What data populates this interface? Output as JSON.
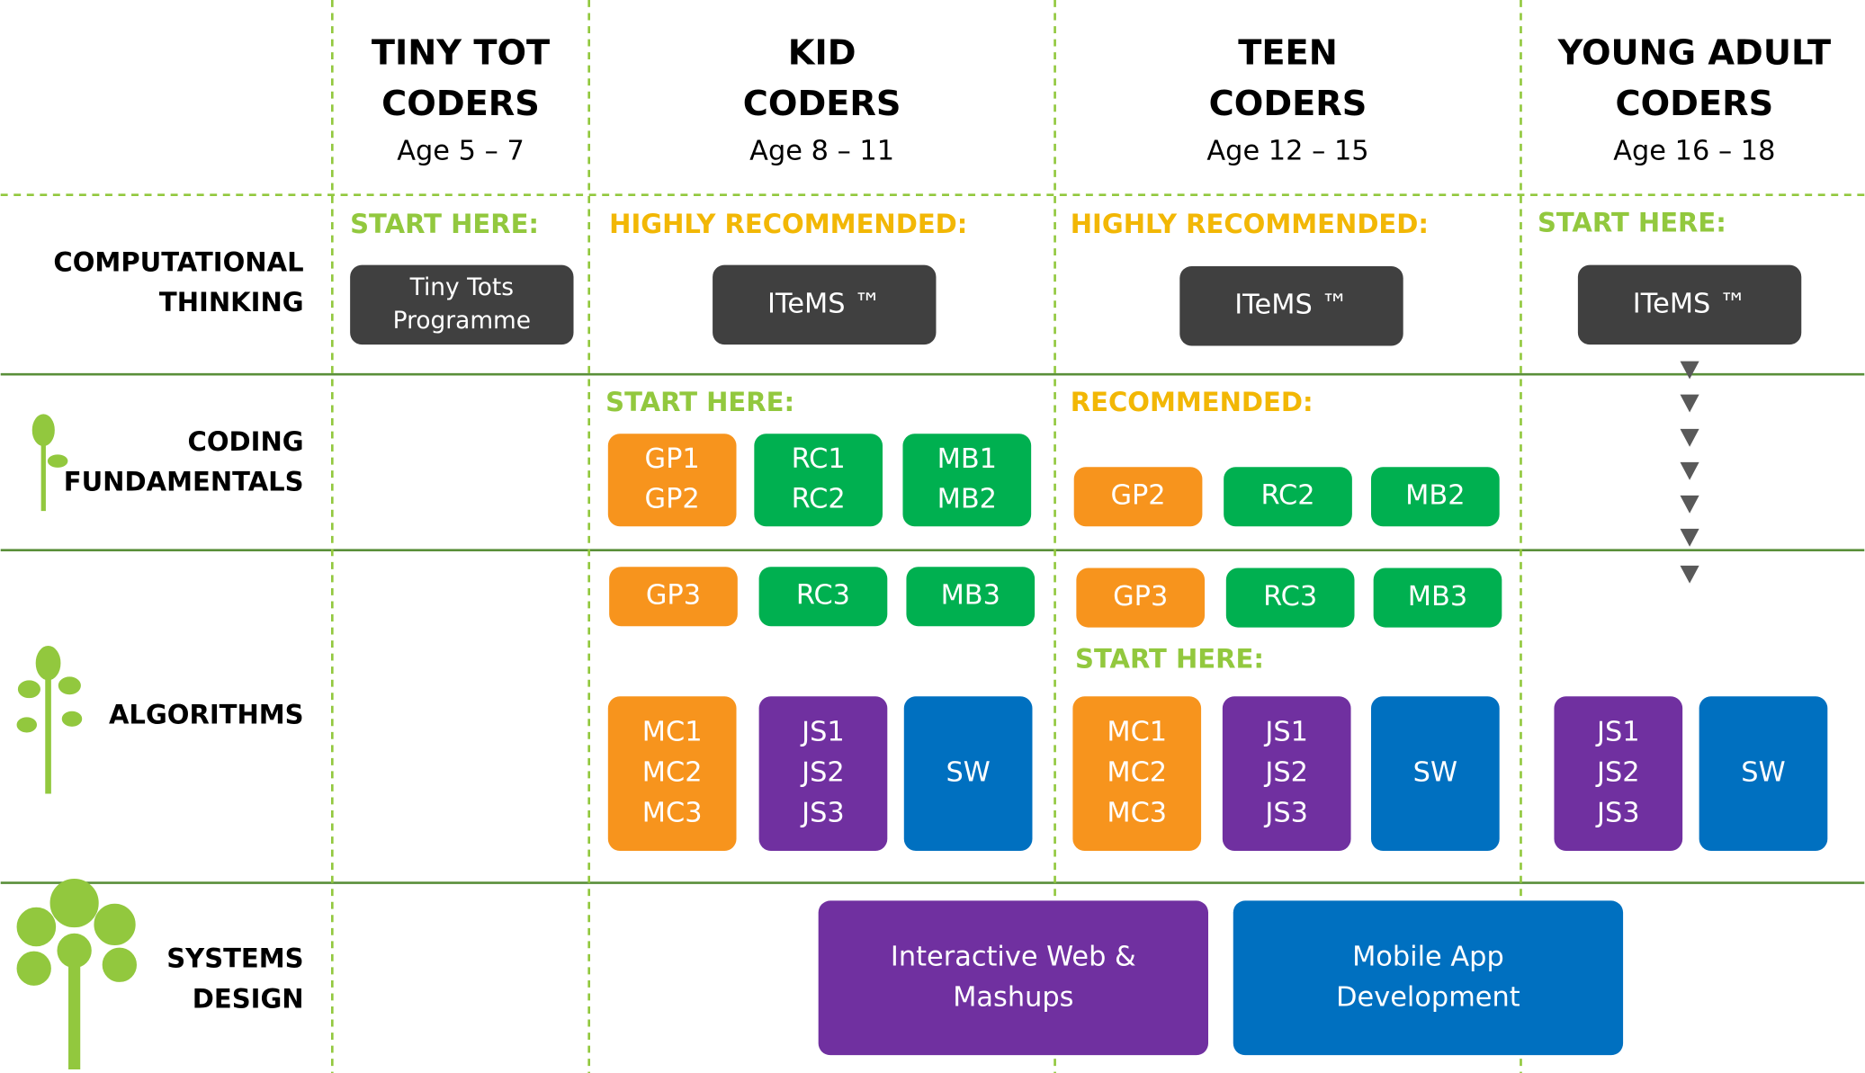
{
  "columns": [
    {
      "title": [
        "TINY TOT",
        "CODERS"
      ],
      "age": "Age 5 – 7"
    },
    {
      "title": [
        "KID",
        "CODERS"
      ],
      "age": "Age 8 – 11"
    },
    {
      "title": [
        "TEEN",
        "CODERS"
      ],
      "age": "Age 12 – 15"
    },
    {
      "title": [
        "YOUNG ADULT",
        "CODERS"
      ],
      "age": "Age 16 – 18"
    }
  ],
  "rows": [
    {
      "label": [
        "COMPUTATIONAL",
        "THINKING"
      ]
    },
    {
      "label": [
        "CODING",
        "FUNDAMENTALS"
      ]
    },
    {
      "label": [
        "ALGORITHMS"
      ]
    },
    {
      "label": [
        "SYSTEMS",
        "DESIGN"
      ]
    }
  ],
  "notes": [
    {
      "text": "START HERE:",
      "color": "#92c83e"
    },
    {
      "text": "HIGHLY RECOMMENDED:",
      "color": "#f2b705"
    },
    {
      "text": "HIGHLY RECOMMENDED:",
      "color": "#f2b705"
    },
    {
      "text": "START HERE:",
      "color": "#92c83e"
    },
    {
      "text": "START HERE:",
      "color": "#92c83e"
    },
    {
      "text": "RECOMMENDED:",
      "color": "#f2b705"
    },
    {
      "text": "START HERE:",
      "color": "#92c83e"
    }
  ],
  "boxes": [
    {
      "lines": [
        "Tiny Tots",
        "Programme"
      ],
      "color": "#404040"
    },
    {
      "lines": [
        "ITeMS ™"
      ],
      "color": "#404040"
    },
    {
      "lines": [
        "ITeMS ™"
      ],
      "color": "#404040"
    },
    {
      "lines": [
        "ITeMS ™"
      ],
      "color": "#404040"
    },
    {
      "lines": [
        "GP1",
        "GP2"
      ],
      "color": "#f7941d"
    },
    {
      "lines": [
        "RC1",
        "RC2"
      ],
      "color": "#00b050"
    },
    {
      "lines": [
        "MB1",
        "MB2"
      ],
      "color": "#00b050"
    },
    {
      "lines": [
        "GP2"
      ],
      "color": "#f7941d"
    },
    {
      "lines": [
        "RC2"
      ],
      "color": "#00b050"
    },
    {
      "lines": [
        "MB2"
      ],
      "color": "#00b050"
    },
    {
      "lines": [
        "GP3"
      ],
      "color": "#f7941d"
    },
    {
      "lines": [
        "RC3"
      ],
      "color": "#00b050"
    },
    {
      "lines": [
        "MB3"
      ],
      "color": "#00b050"
    },
    {
      "lines": [
        "GP3"
      ],
      "color": "#f7941d"
    },
    {
      "lines": [
        "RC3"
      ],
      "color": "#00b050"
    },
    {
      "lines": [
        "MB3"
      ],
      "color": "#00b050"
    },
    {
      "lines": [
        "MC1",
        "MC2",
        "MC3"
      ],
      "color": "#f7941d"
    },
    {
      "lines": [
        "JS1",
        "JS2",
        "JS3"
      ],
      "color": "#7030a0"
    },
    {
      "lines": [
        "SW"
      ],
      "color": "#0070c0"
    },
    {
      "lines": [
        "MC1",
        "MC2",
        "MC3"
      ],
      "color": "#f7941d"
    },
    {
      "lines": [
        "JS1",
        "JS2",
        "JS3"
      ],
      "color": "#7030a0"
    },
    {
      "lines": [
        "SW"
      ],
      "color": "#0070c0"
    },
    {
      "lines": [
        "JS1",
        "JS2",
        "JS3"
      ],
      "color": "#7030a0"
    },
    {
      "lines": [
        "SW"
      ],
      "color": "#0070c0"
    },
    {
      "lines": [
        "Interactive Web &",
        "Mashups"
      ],
      "color": "#7030a0"
    },
    {
      "lines": [
        "Mobile App",
        "Development"
      ],
      "color": "#0070c0"
    }
  ]
}
